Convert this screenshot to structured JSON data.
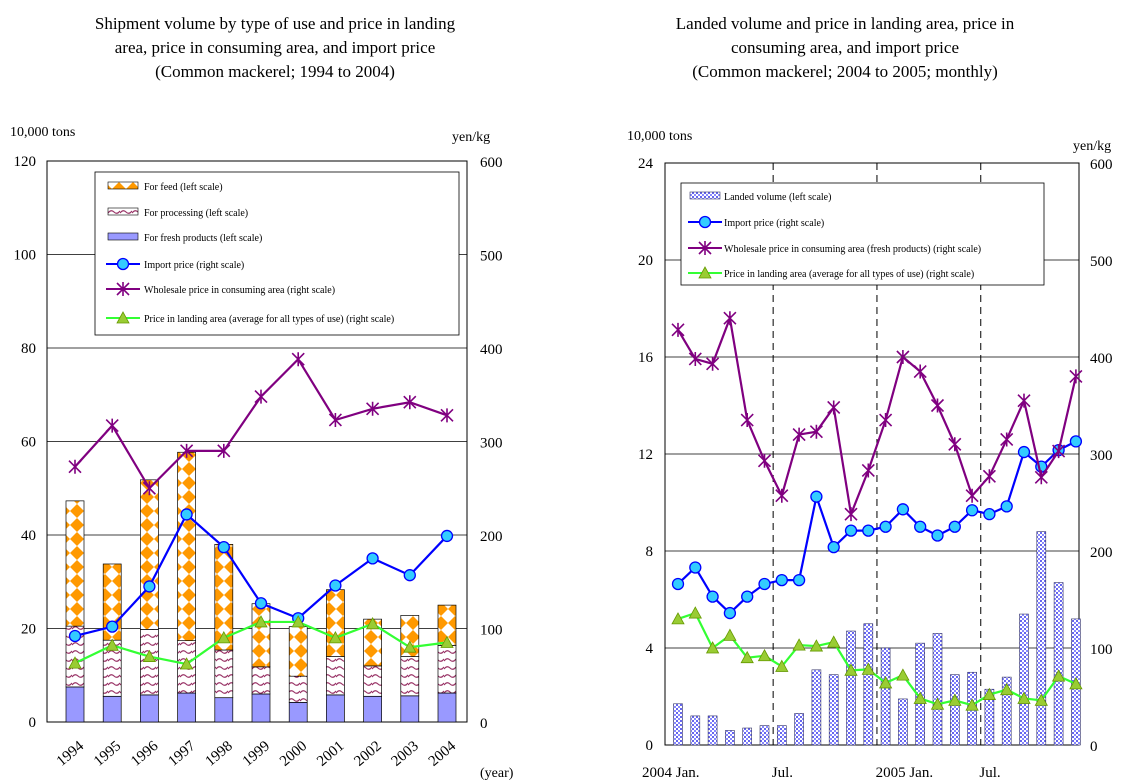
{
  "chart_data": [
    {
      "type": "bar",
      "title_lines": [
        "Shipment volume by type of use and price in landing",
        "area, price in consuming area, and import price",
        "(Common mackerel; 1994 to 2004)"
      ],
      "ylabel_left": "10,000 tons",
      "ylabel_right": "yen/kg",
      "xlabel": "(year)",
      "ylim_left": [
        0,
        120
      ],
      "ylim_right": [
        0,
        600
      ],
      "yticks_left": [
        "0",
        "20",
        "40",
        "60",
        "80",
        "100",
        "120"
      ],
      "yticks_right": [
        "0",
        "100",
        "200",
        "300",
        "400",
        "500",
        "600"
      ],
      "categories": [
        "1994",
        "1995",
        "1996",
        "1997",
        "1998",
        "1999",
        "2000",
        "2001",
        "2002",
        "2003",
        "2004"
      ],
      "bar_series": [
        {
          "name": "For fresh products (left scale)",
          "color": "#9999ff",
          "values": [
            7.5,
            5.5,
            5.8,
            6.2,
            5.2,
            6.0,
            4.2,
            5.8,
            5.5,
            5.6,
            6.2
          ]
        },
        {
          "name": "For processing (left scale)",
          "color": "#993366",
          "values": [
            13.0,
            12.0,
            14.0,
            11.2,
            10.2,
            5.8,
            5.6,
            8.2,
            6.5,
            8.4,
            10.2
          ]
        },
        {
          "name": "For feed (left scale)",
          "color": "#ff9900",
          "values": [
            26.8,
            16.3,
            32.0,
            40.3,
            22.6,
            13.5,
            10.6,
            14.3,
            10.0,
            8.8,
            8.6
          ]
        }
      ],
      "line_series": [
        {
          "name": "Import price (right scale)",
          "color": "#0000ff",
          "marker": "circle",
          "values": [
            92,
            102,
            145,
            222,
            187,
            127,
            111,
            146,
            175,
            157,
            199
          ]
        },
        {
          "name": "Wholesale price in consuming area (right scale)",
          "color": "#800080",
          "marker": "star",
          "values": [
            273,
            317,
            250,
            290,
            290,
            348,
            388,
            323,
            335,
            342,
            328
          ]
        },
        {
          "name": "Price in landing area (average for all types of use) (right scale)",
          "color": "#33ff33",
          "marker": "triangle",
          "values": [
            63,
            82,
            70,
            62,
            90,
            107,
            107,
            90,
            105,
            80,
            85
          ]
        }
      ],
      "legend_order": [
        "For feed (left scale)",
        "For processing (left scale)",
        "For fresh products (left scale)",
        "Import price (right scale)",
        "Wholesale price in consuming area (right scale)",
        "Price in landing area (average for all types of use) (right scale)"
      ],
      "legend_position": "top",
      "grid": true
    },
    {
      "type": "bar",
      "title_lines": [
        "Landed volume and price in landing area, price in",
        "consuming area, and import price",
        "(Common mackerel; 2004 to 2005; monthly)"
      ],
      "ylabel_left": "10,000 tons",
      "ylabel_right": "yen/kg",
      "ylim_left": [
        0,
        24
      ],
      "ylim_right": [
        0,
        600
      ],
      "yticks_left": [
        "0",
        "4",
        "8",
        "12",
        "16",
        "20",
        "24"
      ],
      "yticks_right": [
        "0",
        "100",
        "200",
        "300",
        "400",
        "500",
        "600"
      ],
      "x_tick_labels": [
        {
          "index": 0,
          "label": "2004 Jan."
        },
        {
          "index": 6,
          "label": "Jul."
        },
        {
          "index": 12,
          "label": "2005 Jan."
        },
        {
          "index": 18,
          "label": "Jul."
        }
      ],
      "x_dividers_after": [
        5,
        11,
        17
      ],
      "x_count": 24,
      "bar_series": [
        {
          "name": "Landed volume (left scale)",
          "color": "#9999ff",
          "values": [
            1.7,
            1.2,
            1.2,
            0.6,
            0.7,
            0.8,
            0.8,
            1.3,
            3.1,
            2.9,
            4.7,
            5.0,
            4.0,
            1.9,
            4.2,
            4.6,
            2.9,
            3.0,
            2.3,
            2.8,
            5.4,
            8.8,
            6.7,
            5.2
          ]
        }
      ],
      "line_series": [
        {
          "name": "Import price (right scale)",
          "color": "#0000ff",
          "marker": "circle",
          "values": [
            166,
            183,
            153,
            136,
            153,
            166,
            170,
            170,
            256,
            204,
            221,
            221,
            225,
            243,
            225,
            216,
            225,
            242,
            238,
            246,
            302,
            287,
            304,
            313
          ]
        },
        {
          "name": "Wholesale price in consuming area (fresh products) (right scale)",
          "color": "#800080",
          "marker": "star",
          "values": [
            428,
            398,
            393,
            440,
            335,
            293,
            257,
            320,
            323,
            348,
            238,
            283,
            335,
            400,
            385,
            350,
            310,
            257,
            277,
            315,
            355,
            276,
            303,
            380
          ]
        },
        {
          "name": "Price in landing area (average for all types of use) (right scale)",
          "color": "#33ff33",
          "marker": "triangle",
          "values": [
            130,
            136,
            100,
            113,
            90,
            92,
            81,
            103,
            102,
            106,
            77,
            78,
            64,
            72,
            48,
            42,
            46,
            41,
            52,
            57,
            48,
            46,
            71,
            63
          ]
        }
      ],
      "legend_order": [
        "Landed volume (left scale)",
        "Import price (right scale)",
        "Wholesale price in consuming area (fresh products) (right scale)",
        "Price in landing area (average for all types of use) (right scale)"
      ],
      "legend_position": "top",
      "grid": true
    }
  ]
}
